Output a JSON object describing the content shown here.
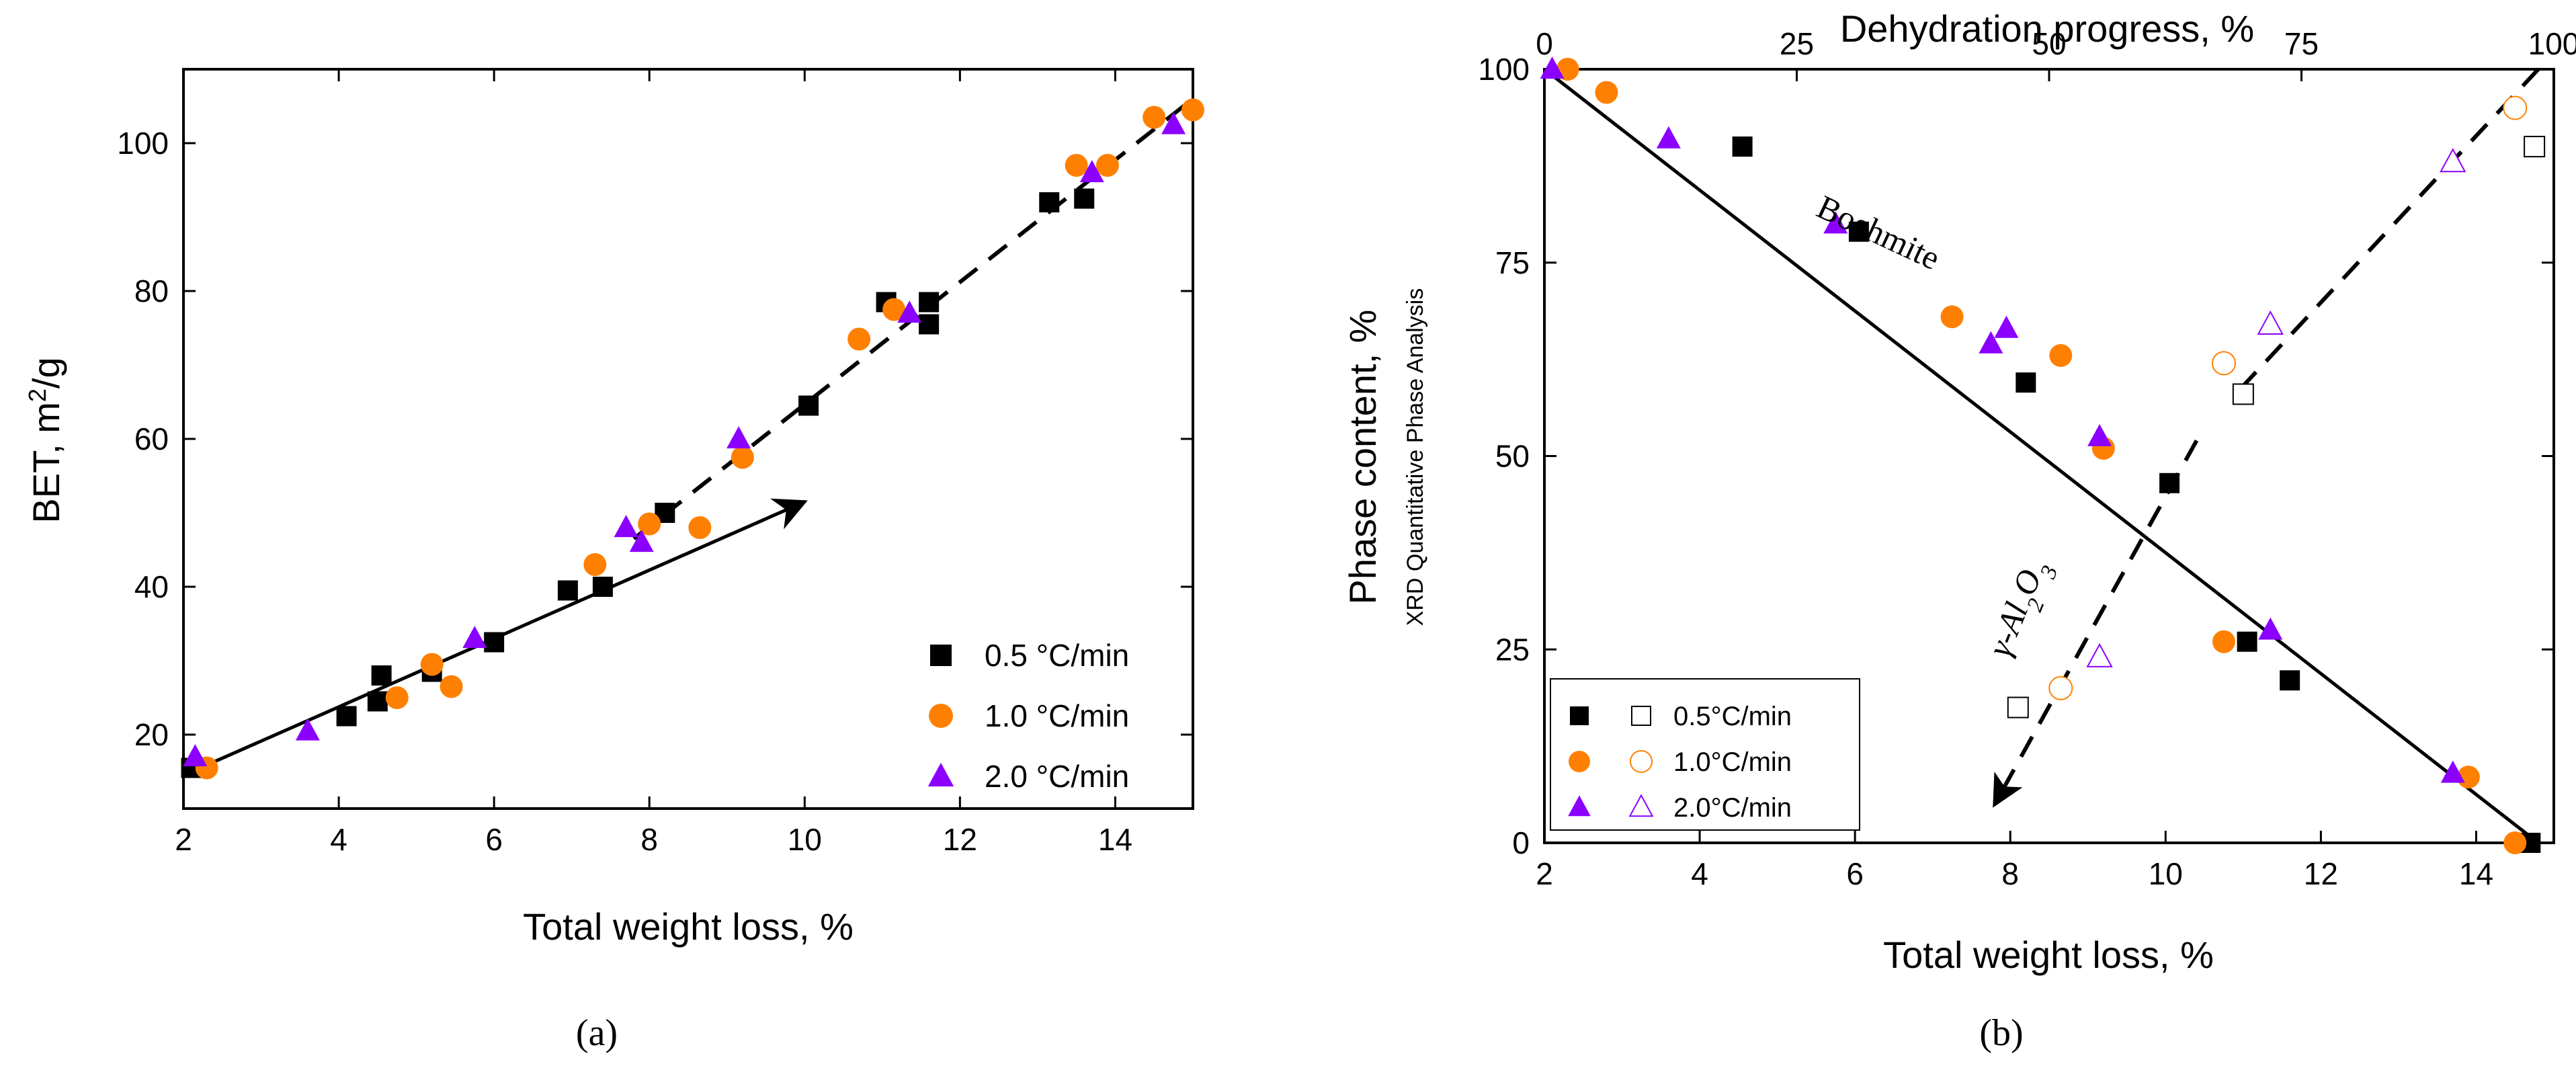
{
  "chart_data": [
    {
      "panel": "(a)",
      "type": "scatter",
      "title": "",
      "xlabel": "Total weight loss, %",
      "ylabel": "BET, m",
      "ylabel_sup": "2",
      "ylabel_suffix": "/g",
      "xlim": [
        2,
        15
      ],
      "ylim": [
        10,
        110
      ],
      "xticks": [
        2,
        4,
        6,
        8,
        10,
        12,
        14
      ],
      "yticks": [
        20,
        40,
        60,
        80,
        100
      ],
      "legend": [
        {
          "label": "0.5 °C/min",
          "marker": "square",
          "color": "#000000"
        },
        {
          "label": "1.0 °C/min",
          "marker": "circle",
          "color": "#FF8000"
        },
        {
          "label": "2.0 °C/min",
          "marker": "triangle",
          "color": "#8B00FF"
        }
      ],
      "series": [
        {
          "name": "0.5 °C/min",
          "marker": "square",
          "color": "#000000",
          "x": [
            2.1,
            4.1,
            4.5,
            4.55,
            5.2,
            6.0,
            6.95,
            7.4,
            8.2,
            10.05,
            11.05,
            11.6,
            11.6,
            13.15,
            13.6
          ],
          "y": [
            15.5,
            22.5,
            24.5,
            28,
            28.5,
            32.5,
            39.5,
            40,
            50,
            64.5,
            78.5,
            78.5,
            75.5,
            92,
            92.5
          ]
        },
        {
          "name": "1.0 °C/min",
          "marker": "circle",
          "color": "#FF8000",
          "x": [
            2.3,
            4.75,
            5.2,
            5.45,
            7.3,
            8.0,
            8.65,
            9.2,
            10.7,
            11.15,
            13.5,
            13.9,
            14.5,
            15.0
          ],
          "y": [
            15.5,
            25,
            29.5,
            26.5,
            43,
            48.5,
            48,
            57.5,
            73.5,
            77.5,
            97,
            97,
            103.5,
            104.5
          ]
        },
        {
          "name": "2.0 °C/min",
          "marker": "triangle",
          "color": "#8B00FF",
          "x": [
            2.15,
            3.6,
            5.75,
            7.7,
            7.9,
            9.15,
            11.35,
            13.7,
            14.75
          ],
          "y": [
            17,
            20.5,
            33,
            48,
            46,
            60,
            77,
            96,
            102.5
          ]
        }
      ],
      "lines": [
        {
          "style": "solid",
          "arrow": true,
          "from": [
            2.0,
            14.5
          ],
          "to": [
            10.0,
            51.5
          ]
        },
        {
          "style": "dashed",
          "from": [
            7.8,
            46.5
          ],
          "to": [
            15.0,
            106
          ]
        }
      ]
    },
    {
      "panel": "(b)",
      "type": "scatter",
      "title": "Dehydration progress, %",
      "xlabel": "Total weight loss, %",
      "ylabel": "Phase content, %",
      "ylabel2": "XRD Quantitative Phase Analysis",
      "xlim": [
        2,
        15
      ],
      "ylim": [
        0,
        100
      ],
      "xticks": [
        2,
        4,
        6,
        8,
        10,
        12,
        14
      ],
      "yticks": [
        0,
        25,
        50,
        75,
        100
      ],
      "x2lim": [
        0,
        100
      ],
      "x2ticks": [
        0,
        25,
        50,
        75,
        100
      ],
      "annotations": [
        "Boehmite",
        "γ-Al",
        "2",
        "O",
        "3"
      ],
      "legend": [
        {
          "label": "0.5°C/min",
          "marker": "square",
          "color": "#000000"
        },
        {
          "label": "1.0°C/min",
          "marker": "circle",
          "color": "#FF8000"
        },
        {
          "label": "2.0°C/min",
          "marker": "triangle",
          "color": "#8B00FF"
        }
      ],
      "series": [
        {
          "name": "Boehmite 0.5°C/min",
          "marker": "square",
          "filled": true,
          "color": "#000000",
          "x": [
            4.55,
            6.05,
            8.2,
            10.05,
            11.05,
            11.6,
            14.7
          ],
          "y": [
            90,
            79,
            59.5,
            46.5,
            26,
            21,
            0
          ]
        },
        {
          "name": "Boehmite 1.0°C/min",
          "marker": "circle",
          "filled": true,
          "color": "#FF8000",
          "x": [
            2.3,
            2.8,
            7.25,
            8.65,
            9.2,
            10.75,
            13.9,
            14.5
          ],
          "y": [
            100,
            97,
            68,
            63,
            51,
            26,
            8.5,
            0
          ]
        },
        {
          "name": "Boehmite 2.0°C/min",
          "marker": "triangle",
          "filled": true,
          "color": "#8B00FF",
          "x": [
            2.1,
            3.6,
            5.75,
            7.75,
            7.95,
            9.15,
            11.35,
            13.7
          ],
          "y": [
            100,
            91,
            80,
            64.5,
            66.5,
            52.5,
            27.5,
            9
          ]
        },
        {
          "name": "γ-Al2O3 0.5°C/min",
          "marker": "square",
          "filled": false,
          "color": "#000000",
          "x": [
            8.1,
            11.0,
            14.75
          ],
          "y": [
            17.5,
            58,
            90
          ]
        },
        {
          "name": "γ-Al2O3 1.0°C/min",
          "marker": "circle",
          "filled": false,
          "color": "#FF8000",
          "x": [
            8.65,
            10.75,
            14.5
          ],
          "y": [
            20,
            62,
            95
          ]
        },
        {
          "name": "γ-Al2O3 2.0°C/min",
          "marker": "triangle",
          "filled": false,
          "color": "#8B00FF",
          "x": [
            9.15,
            11.35,
            13.7
          ],
          "y": [
            24,
            67,
            88
          ]
        }
      ],
      "lines": [
        {
          "style": "solid",
          "from": [
            2.0,
            100
          ],
          "to": [
            14.8,
            0
          ]
        },
        {
          "style": "dashed",
          "from": [
            14.8,
            100
          ],
          "to": [
            10.9,
            58
          ]
        },
        {
          "style": "dashed",
          "arrow": true,
          "from": [
            10.4,
            52
          ],
          "to": [
            7.8,
            5
          ]
        }
      ]
    }
  ]
}
